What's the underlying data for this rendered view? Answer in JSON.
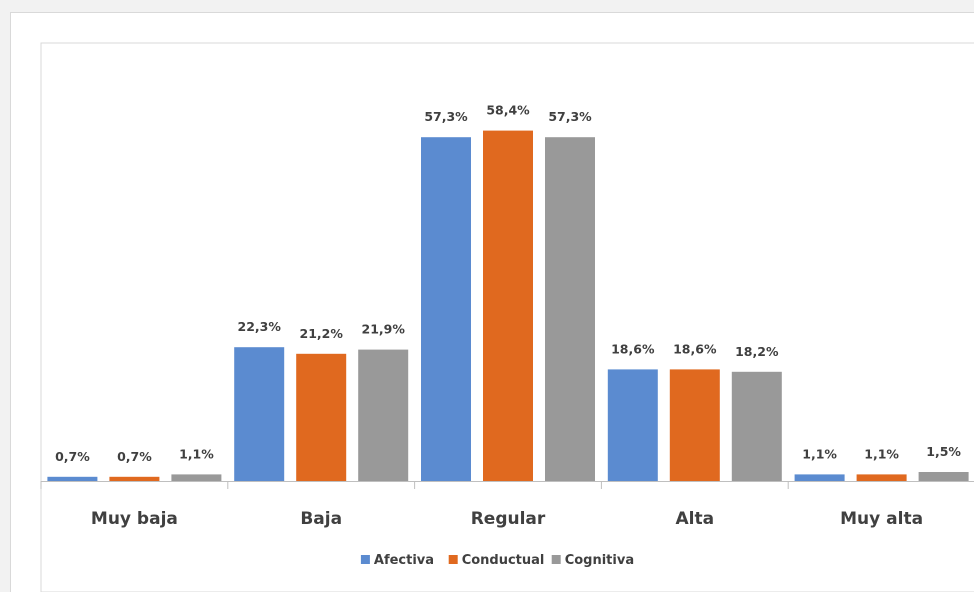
{
  "chart_data": {
    "type": "bar",
    "categories": [
      "Muy baja",
      "Baja",
      "Regular",
      "Alta",
      "Muy alta"
    ],
    "series": [
      {
        "name": "Afectiva",
        "color": "#5b8bd0",
        "values": [
          0.7,
          22.3,
          57.3,
          18.6,
          1.1
        ],
        "labels": [
          "0,7%",
          "22,3%",
          "57,3%",
          "18,6%",
          "1,1%"
        ]
      },
      {
        "name": "Conductual",
        "color": "#e0691f",
        "values": [
          0.7,
          21.2,
          58.4,
          18.6,
          1.1
        ],
        "labels": [
          "0,7%",
          "21,2%",
          "58,4%",
          "18,6%",
          "1,1%"
        ]
      },
      {
        "name": "Cognitiva",
        "color": "#999999",
        "values": [
          1.1,
          21.9,
          57.3,
          18.2,
          1.5
        ],
        "labels": [
          "1,1%",
          "21,9%",
          "57,3%",
          "18,2%",
          "1,5%"
        ]
      }
    ],
    "title": "",
    "xlabel": "",
    "ylabel": "",
    "ylim": [
      0,
      60
    ],
    "grid": false,
    "legend": "bottom"
  }
}
